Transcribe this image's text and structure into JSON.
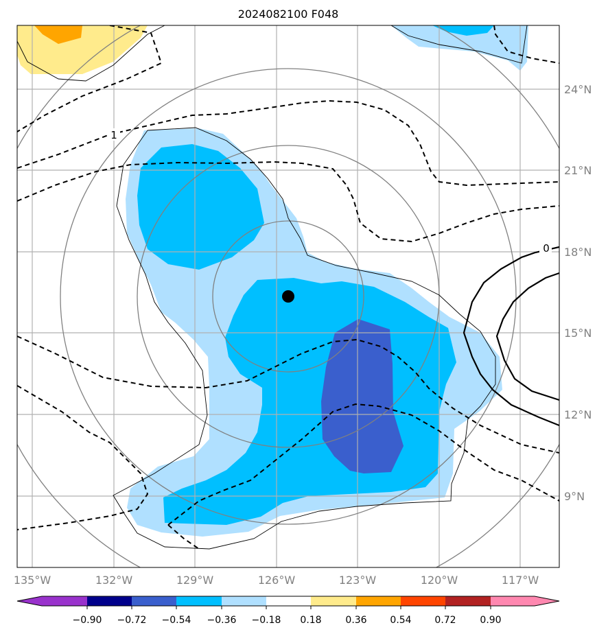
{
  "title": "2024082100 F048",
  "lat_labels": [
    "24°N",
    "21°N",
    "18°N",
    "15°N",
    "12°N",
    "9°N"
  ],
  "lon_labels": [
    "135°W",
    "132°W",
    "129°W",
    "126°W",
    "123°W",
    "120°W",
    "117°W"
  ],
  "contour_labels": [
    "1",
    "0"
  ],
  "colorbar": {
    "ticks": [
      "−0.90",
      "−0.72",
      "−0.54",
      "−0.36",
      "−0.18",
      "0.18",
      "0.36",
      "0.54",
      "0.72",
      "0.90"
    ],
    "colors": [
      "#9932cc",
      "#00008b",
      "#3a5fcd",
      "#00bfff",
      "#b0e0ff",
      "#ffffff",
      "#ffeb8c",
      "#ffa500",
      "#ff4500",
      "#b22222",
      "#ff88b0"
    ]
  },
  "map": {
    "lon_range": [
      -135.5,
      -115.5
    ],
    "lat_range": [
      6.5,
      26.5
    ],
    "storm_center": {
      "lon": -125.4,
      "lat": 16.3
    },
    "shade_colors": {
      "light_blue": "#b0e0ff",
      "blue": "#00bfff",
      "dark_blue": "#3a5fcd",
      "yellow": "#ffeb8c",
      "orange": "#ffa500"
    }
  }
}
